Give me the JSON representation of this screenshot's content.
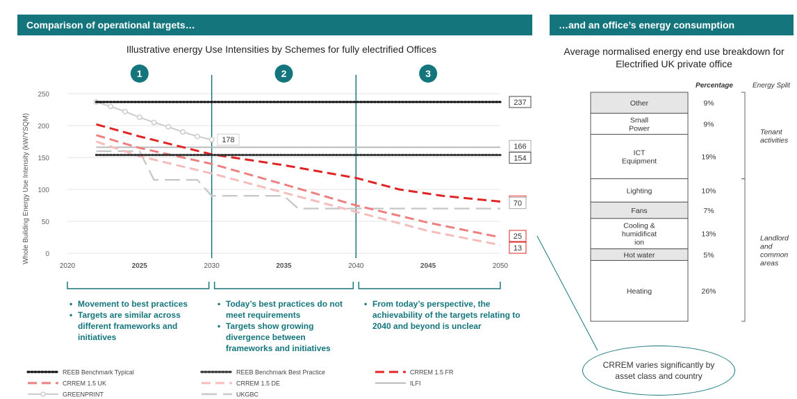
{
  "left_panel": {
    "banner": "Comparison of operational targets…"
  },
  "right_panel": {
    "banner": "…and an office’s energy consumption"
  },
  "chart_data": [
    {
      "type": "line",
      "title": "Illustrative energy Use Intensities by Schemes for fully electrified Offices",
      "ylabel": "Whole Building Energy Use Intensity (kW/YSQM)",
      "xlabel": "",
      "xlim": [
        2020,
        2050
      ],
      "ylim": [
        0,
        250
      ],
      "x_ticks": [
        2020,
        2025,
        2030,
        2035,
        2040,
        2045,
        2050
      ],
      "y_ticks": [
        0,
        50,
        100,
        150,
        200,
        250
      ],
      "grid": true,
      "legend_position": "bottom",
      "phases": [
        {
          "number": "1",
          "bullets": [
            "Movement to best practices",
            "Targets are similar across different frameworks and initiatives"
          ]
        },
        {
          "number": "2",
          "bullets": [
            "Today’s best practices do not meet requirements",
            "Targets show growing divergence between frameworks and initiatives"
          ]
        },
        {
          "number": "3",
          "bullets": [
            "From today’s perspective, the achievability of the targets relating to 2040 and beyond is unclear"
          ]
        }
      ],
      "series": [
        {
          "name": "REEB Benchmark Typical",
          "color": "#111111",
          "style": "dotted",
          "x": [
            2022,
            2050
          ],
          "y": [
            237,
            237
          ],
          "end_label": "237"
        },
        {
          "name": "REEB Benchmark Best Practice",
          "color": "#333333",
          "style": "dotted",
          "x": [
            2022,
            2050
          ],
          "y": [
            154,
            154
          ],
          "end_label": "154"
        },
        {
          "name": "CRREM 1.5 FR",
          "color": "#e02424",
          "style": "dashed",
          "x": [
            2022,
            2025,
            2030,
            2035,
            2040,
            2043,
            2046,
            2050
          ],
          "y": [
            202,
            183,
            155,
            138,
            118,
            100,
            90,
            81
          ],
          "end_label": "81"
        },
        {
          "name": "CRREM 1.5 UK",
          "color": "#ee7f7f",
          "style": "dashed",
          "x": [
            2022,
            2025,
            2030,
            2035,
            2040,
            2045,
            2050
          ],
          "y": [
            185,
            165,
            140,
            108,
            75,
            48,
            25
          ],
          "end_label": "25"
        },
        {
          "name": "CRREM 1.5 DE",
          "color": "#f6bcbc",
          "style": "dashed",
          "x": [
            2022,
            2025,
            2030,
            2035,
            2040,
            2045,
            2050
          ],
          "y": [
            175,
            152,
            125,
            95,
            65,
            35,
            13
          ],
          "end_label": "13"
        },
        {
          "name": "ILFI",
          "color": "#bbbbbb",
          "style": "solid",
          "x": [
            2022,
            2050
          ],
          "y": [
            166,
            166
          ],
          "end_label": "166"
        },
        {
          "name": "GREENPRINT",
          "color": "#cccccc",
          "style": "markers",
          "x": [
            2022,
            2023,
            2024,
            2025,
            2026,
            2027,
            2028,
            2029,
            2030
          ],
          "y": [
            237,
            230,
            222,
            213,
            205,
            198,
            190,
            183,
            178
          ],
          "end_label": "178"
        },
        {
          "name": "UKGBC",
          "color": "#c8c8c8",
          "style": "longdash",
          "x": [
            2022,
            2025,
            2026,
            2029,
            2030,
            2031,
            2035,
            2036,
            2050
          ],
          "y": [
            160,
            160,
            115,
            115,
            90,
            90,
            90,
            70,
            70
          ],
          "end_label": "70"
        }
      ]
    },
    {
      "type": "bar",
      "title": "Average normalised energy end use breakdown for Electrified UK private office",
      "column_headers": [
        "Percentage",
        "Energy Split"
      ],
      "categories": [
        "Other",
        "Small Power",
        "ICT Equipment",
        "Lighting",
        "Fans",
        "Cooling & humidification",
        "Hot water",
        "Heating"
      ],
      "labels": [
        "Other",
        "Small\nPower",
        "ICT\nEquipment",
        "Lighting",
        "Fans",
        "Cooling &\nhumidificat\nion",
        "Hot water",
        "Heating"
      ],
      "values": [
        9,
        9,
        19,
        10,
        7,
        13,
        5,
        26
      ],
      "value_labels": [
        "9%",
        "9%",
        "19%",
        "10%",
        "7%",
        "13%",
        "5%",
        "26%"
      ],
      "groups": [
        {
          "label": "Tenant\nactivities",
          "categories": [
            "Other",
            "Small Power",
            "ICT Equipment"
          ]
        },
        {
          "label": "Landlord\nand\ncommon\nareas",
          "categories": [
            "Lighting",
            "Fans",
            "Cooling & humidification",
            "Hot water",
            "Heating"
          ]
        }
      ],
      "fills": [
        "#e6e6e6",
        "#ffffff",
        "#ffffff",
        "#ffffff",
        "#e6e6e6",
        "#ffffff",
        "#e6e6e6",
        "#ffffff"
      ]
    }
  ],
  "callout": {
    "text": "CRREM varies significantly by asset class and country"
  }
}
